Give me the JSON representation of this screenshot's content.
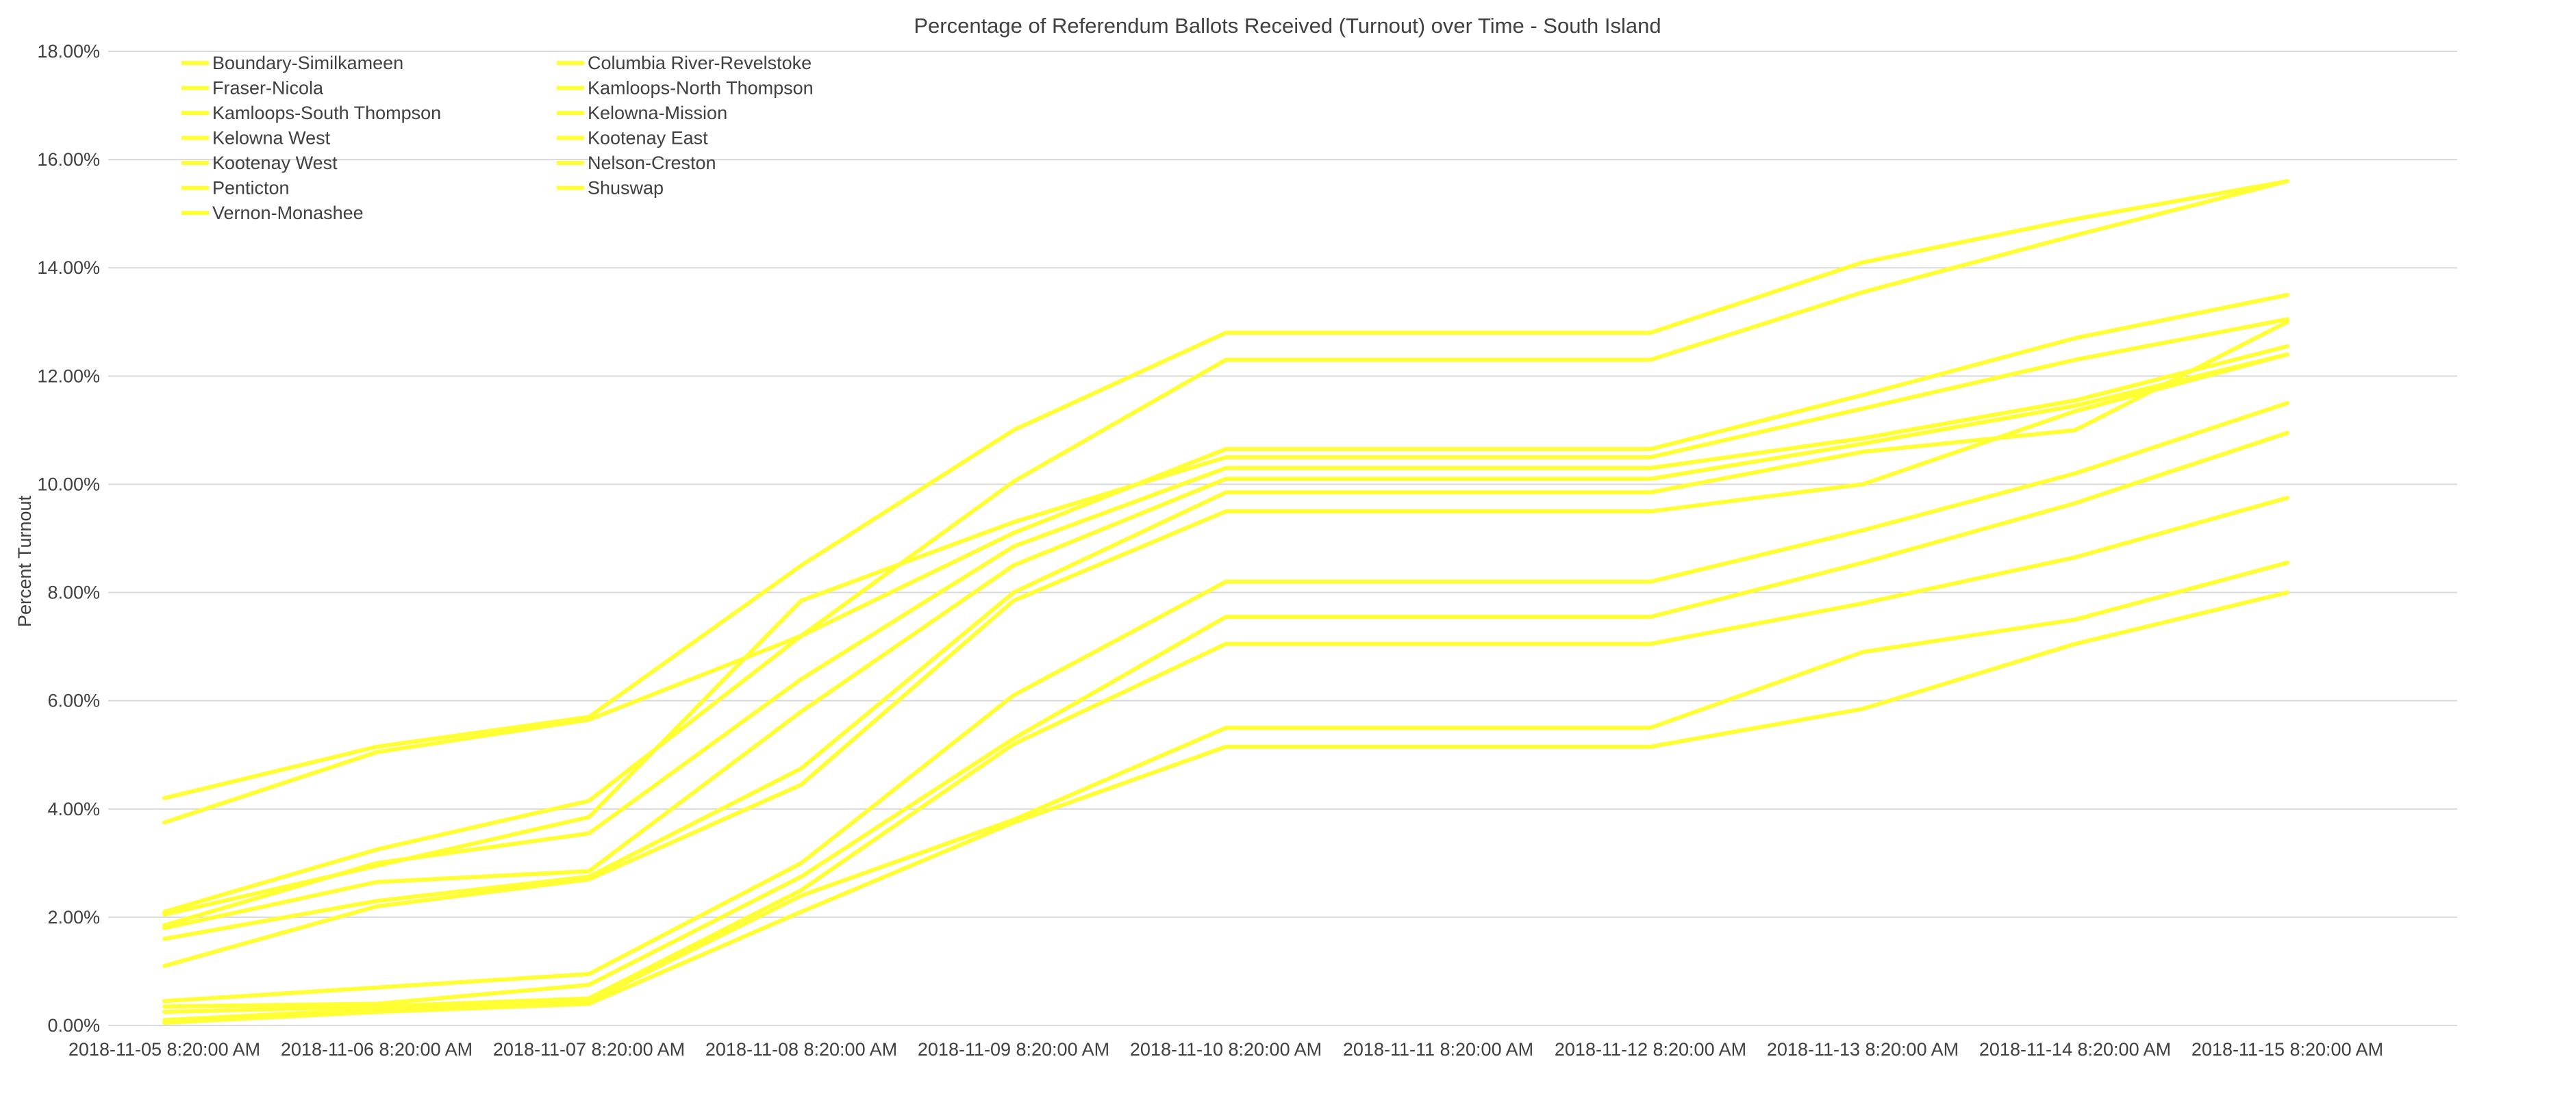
{
  "chart_data": {
    "type": "line",
    "title": "Percentage of Referendum Ballots Received (Turnout) over Time - South Island",
    "xlabel": "",
    "ylabel": "Percent Turnout",
    "ylim": [
      0,
      18
    ],
    "yticks": [
      "0.00%",
      "2.00%",
      "4.00%",
      "6.00%",
      "8.00%",
      "10.00%",
      "12.00%",
      "14.00%",
      "16.00%",
      "18.00%"
    ],
    "grid": true,
    "legend_position": "top-left",
    "series_color": "#ffff33",
    "categories": [
      "2018-11-05 8:20:00 AM",
      "2018-11-06 8:20:00 AM",
      "2018-11-07 8:20:00 AM",
      "2018-11-08 8:20:00 AM",
      "2018-11-09 8:20:00 AM",
      "2018-11-10 8:20:00 AM",
      "2018-11-11 8:20:00 AM",
      "2018-11-12 8:20:00 AM",
      "2018-11-13 8:20:00 AM",
      "2018-11-14 8:20:00 AM",
      "2018-11-15 8:20:00 AM"
    ],
    "series": [
      {
        "name": "Boundary-Similkameen",
        "values": [
          4.2,
          5.15,
          5.7,
          8.5,
          11.0,
          12.8,
          12.8,
          12.8,
          14.1,
          14.9,
          15.6
        ]
      },
      {
        "name": "Columbia River-Revelstoke",
        "values": [
          3.75,
          5.05,
          5.65,
          7.2,
          10.05,
          12.3,
          12.3,
          12.3,
          13.55,
          14.6,
          15.6
        ]
      },
      {
        "name": "Fraser-Nicola",
        "values": [
          2.1,
          3.25,
          4.15,
          7.2,
          9.1,
          10.65,
          10.65,
          10.65,
          11.65,
          12.7,
          13.5
        ]
      },
      {
        "name": "Kamloops-North Thompson",
        "values": [
          2.05,
          2.95,
          3.85,
          7.85,
          9.3,
          10.5,
          10.5,
          10.5,
          11.4,
          12.3,
          13.05
        ]
      },
      {
        "name": "Kamloops-South Thompson",
        "values": [
          1.85,
          3.0,
          3.55,
          6.4,
          8.85,
          10.3,
          10.3,
          10.3,
          10.85,
          11.55,
          12.55
        ]
      },
      {
        "name": "Kelowna-Mission",
        "values": [
          1.8,
          2.65,
          2.85,
          5.8,
          8.5,
          10.1,
          10.1,
          10.1,
          10.75,
          11.45,
          12.4
        ]
      },
      {
        "name": "Kelowna West",
        "values": [
          1.6,
          2.3,
          2.75,
          4.75,
          8.0,
          9.85,
          9.85,
          9.85,
          10.6,
          11.0,
          13.0
        ]
      },
      {
        "name": "Kootenay East",
        "values": [
          1.1,
          2.2,
          2.7,
          4.45,
          7.85,
          9.5,
          9.5,
          9.5,
          10.0,
          11.35,
          12.4
        ]
      },
      {
        "name": "Kootenay West",
        "values": [
          0.45,
          0.7,
          0.95,
          3.0,
          6.1,
          8.2,
          8.2,
          8.2,
          9.15,
          10.2,
          11.5
        ]
      },
      {
        "name": "Nelson-Creston",
        "values": [
          0.35,
          0.4,
          0.75,
          2.75,
          5.3,
          7.55,
          7.55,
          7.55,
          8.55,
          9.65,
          10.95
        ]
      },
      {
        "name": "Penticton",
        "values": [
          0.25,
          0.35,
          0.5,
          2.5,
          5.2,
          7.05,
          7.05,
          7.05,
          7.8,
          8.65,
          9.75
        ]
      },
      {
        "name": "Shuswap",
        "values": [
          0.1,
          0.3,
          0.45,
          2.4,
          3.8,
          5.5,
          5.5,
          5.5,
          6.9,
          7.5,
          8.55
        ]
      },
      {
        "name": "Vernon-Monashee",
        "values": [
          0.05,
          0.25,
          0.4,
          2.1,
          3.75,
          5.15,
          5.15,
          5.15,
          5.85,
          7.05,
          8.0
        ]
      }
    ]
  }
}
